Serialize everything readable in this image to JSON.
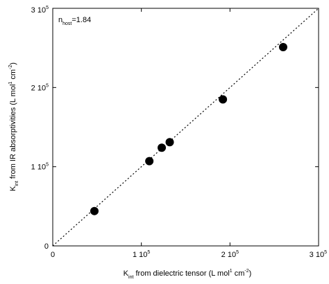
{
  "chart_data": {
    "type": "scatter",
    "xlim": [
      0,
      300000
    ],
    "ylim": [
      0,
      300000
    ],
    "grid": false,
    "legend": "none",
    "x_ticks": [
      {
        "value": 0,
        "label": "0"
      },
      {
        "value": 100000,
        "mant": "1 10",
        "exp": "5"
      },
      {
        "value": 200000,
        "mant": "2 10",
        "exp": "5"
      },
      {
        "value": 300000,
        "mant": "3 10",
        "exp": "5"
      }
    ],
    "y_ticks": [
      {
        "value": 0,
        "label": "0"
      },
      {
        "value": 100000,
        "mant": "1 10",
        "exp": "5"
      },
      {
        "value": 200000,
        "mant": "2 10",
        "exp": "5"
      },
      {
        "value": 300000,
        "mant": "3 10",
        "exp": "5"
      }
    ],
    "xlabel": {
      "k": "K",
      "k_sub": "int",
      "text1": " from dielectric tensor  (L mol",
      "sup1": "1",
      "text2": " cm",
      "sup2": "-2",
      "text3": ")"
    },
    "ylabel": {
      "k": "K",
      "k_sub": "int",
      "text1": " from IR absorptivities (L mol",
      "sup1": "1",
      "text2": " cm",
      "sup2": "-2",
      "text3": ")"
    },
    "annotation": {
      "n": "n",
      "n_sub": "host",
      "value": "=1.84"
    },
    "reference_line": {
      "from": [
        0,
        0
      ],
      "to": [
        300000,
        300000
      ],
      "style": "dotted"
    },
    "points": [
      {
        "x": 47000,
        "y": 44000
      },
      {
        "x": 109000,
        "y": 107000
      },
      {
        "x": 123000,
        "y": 124000
      },
      {
        "x": 132000,
        "y": 131000
      },
      {
        "x": 192000,
        "y": 185000
      },
      {
        "x": 260000,
        "y": 251000
      }
    ],
    "marker_color": "#000000"
  }
}
